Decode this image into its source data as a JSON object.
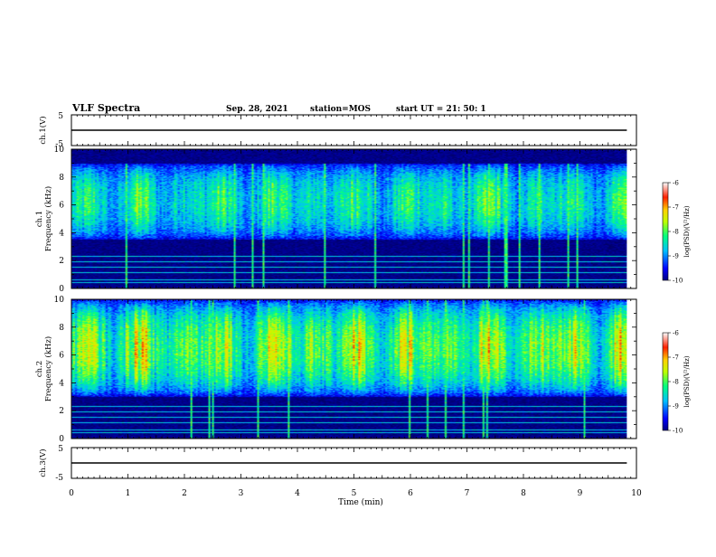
{
  "header": {
    "title": "VLF Spectra",
    "date": "Sep. 28, 2021",
    "station": "station=MOS",
    "start": "start  UT =   21: 50: 1"
  },
  "chart_data": [
    {
      "type": "line",
      "name": "ch1-voltage",
      "ylabel": "ch.1(V)",
      "ylim": [
        -5,
        5
      ],
      "yticks": [
        "5",
        "-5"
      ],
      "x": [
        0,
        9.83
      ],
      "values": [
        0,
        0
      ]
    },
    {
      "type": "heatmap",
      "name": "ch1-spectrogram",
      "ylabel": "ch.1",
      "ylabel2": "Frequency (kHz)",
      "ylim": [
        0,
        10
      ],
      "yticks": [
        "0",
        "2",
        "4",
        "6",
        "8",
        "10"
      ],
      "xlim": [
        0,
        10
      ],
      "data_end_min": 9.83,
      "colorbar": {
        "label": "log(PSD)(V²/Hz)",
        "range": [
          -10,
          -6
        ],
        "ticks": [
          "-6",
          "-7",
          "-8",
          "-9",
          "-10"
        ]
      },
      "band_khz": [
        3.5,
        9.0
      ],
      "peak_level": -7.5
    },
    {
      "type": "heatmap",
      "name": "ch2-spectrogram",
      "ylabel": "ch.2",
      "ylabel2": "Frequency (kHz)",
      "ylim": [
        0,
        10
      ],
      "yticks": [
        "0",
        "2",
        "4",
        "6",
        "8",
        "10"
      ],
      "xlim": [
        0,
        10
      ],
      "data_end_min": 9.83,
      "colorbar": {
        "label": "log(PSD)(V²/Hz)",
        "range": [
          -10,
          -6
        ],
        "ticks": [
          "-6",
          "-7",
          "-8",
          "-9",
          "-10"
        ]
      },
      "band_khz": [
        3.0,
        10.0
      ],
      "peak_level": -6.7
    },
    {
      "type": "line",
      "name": "ch3-voltage",
      "ylabel": "ch.3(V)",
      "ylim": [
        -5,
        5
      ],
      "yticks": [
        "5",
        "-5"
      ],
      "x": [
        0,
        9.83
      ],
      "values": [
        0,
        0
      ]
    }
  ],
  "xaxis": {
    "label": "Time  (min)",
    "ticks": [
      "0",
      "1",
      "2",
      "3",
      "4",
      "5",
      "6",
      "7",
      "8",
      "9",
      "10"
    ],
    "range": [
      0,
      10
    ]
  }
}
